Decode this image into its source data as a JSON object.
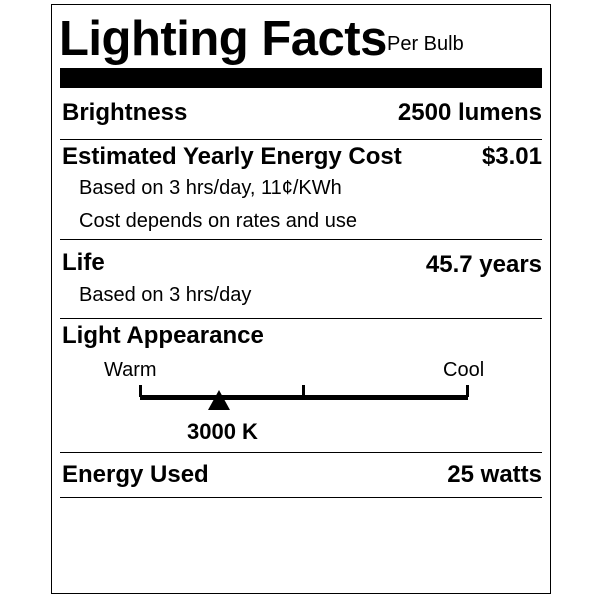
{
  "header": {
    "title": "Lighting Facts",
    "subtitle": "Per Bulb"
  },
  "brightness": {
    "label": "Brightness",
    "value": "2500 lumens"
  },
  "energy_cost": {
    "label": "Estimated Yearly Energy Cost",
    "value": "$3.01",
    "note1": "Based on 3 hrs/day, 11¢/KWh",
    "note2": "Cost depends on rates and use"
  },
  "life": {
    "label": "Life",
    "value": "45.7 years",
    "note": "Based on 3 hrs/day"
  },
  "light_appearance": {
    "label": "Light Appearance",
    "warm_label": "Warm",
    "cool_label": "Cool",
    "value": "3000 K",
    "marker_fraction": 0.24
  },
  "energy_used": {
    "label": "Energy Used",
    "value": "25 watts"
  }
}
